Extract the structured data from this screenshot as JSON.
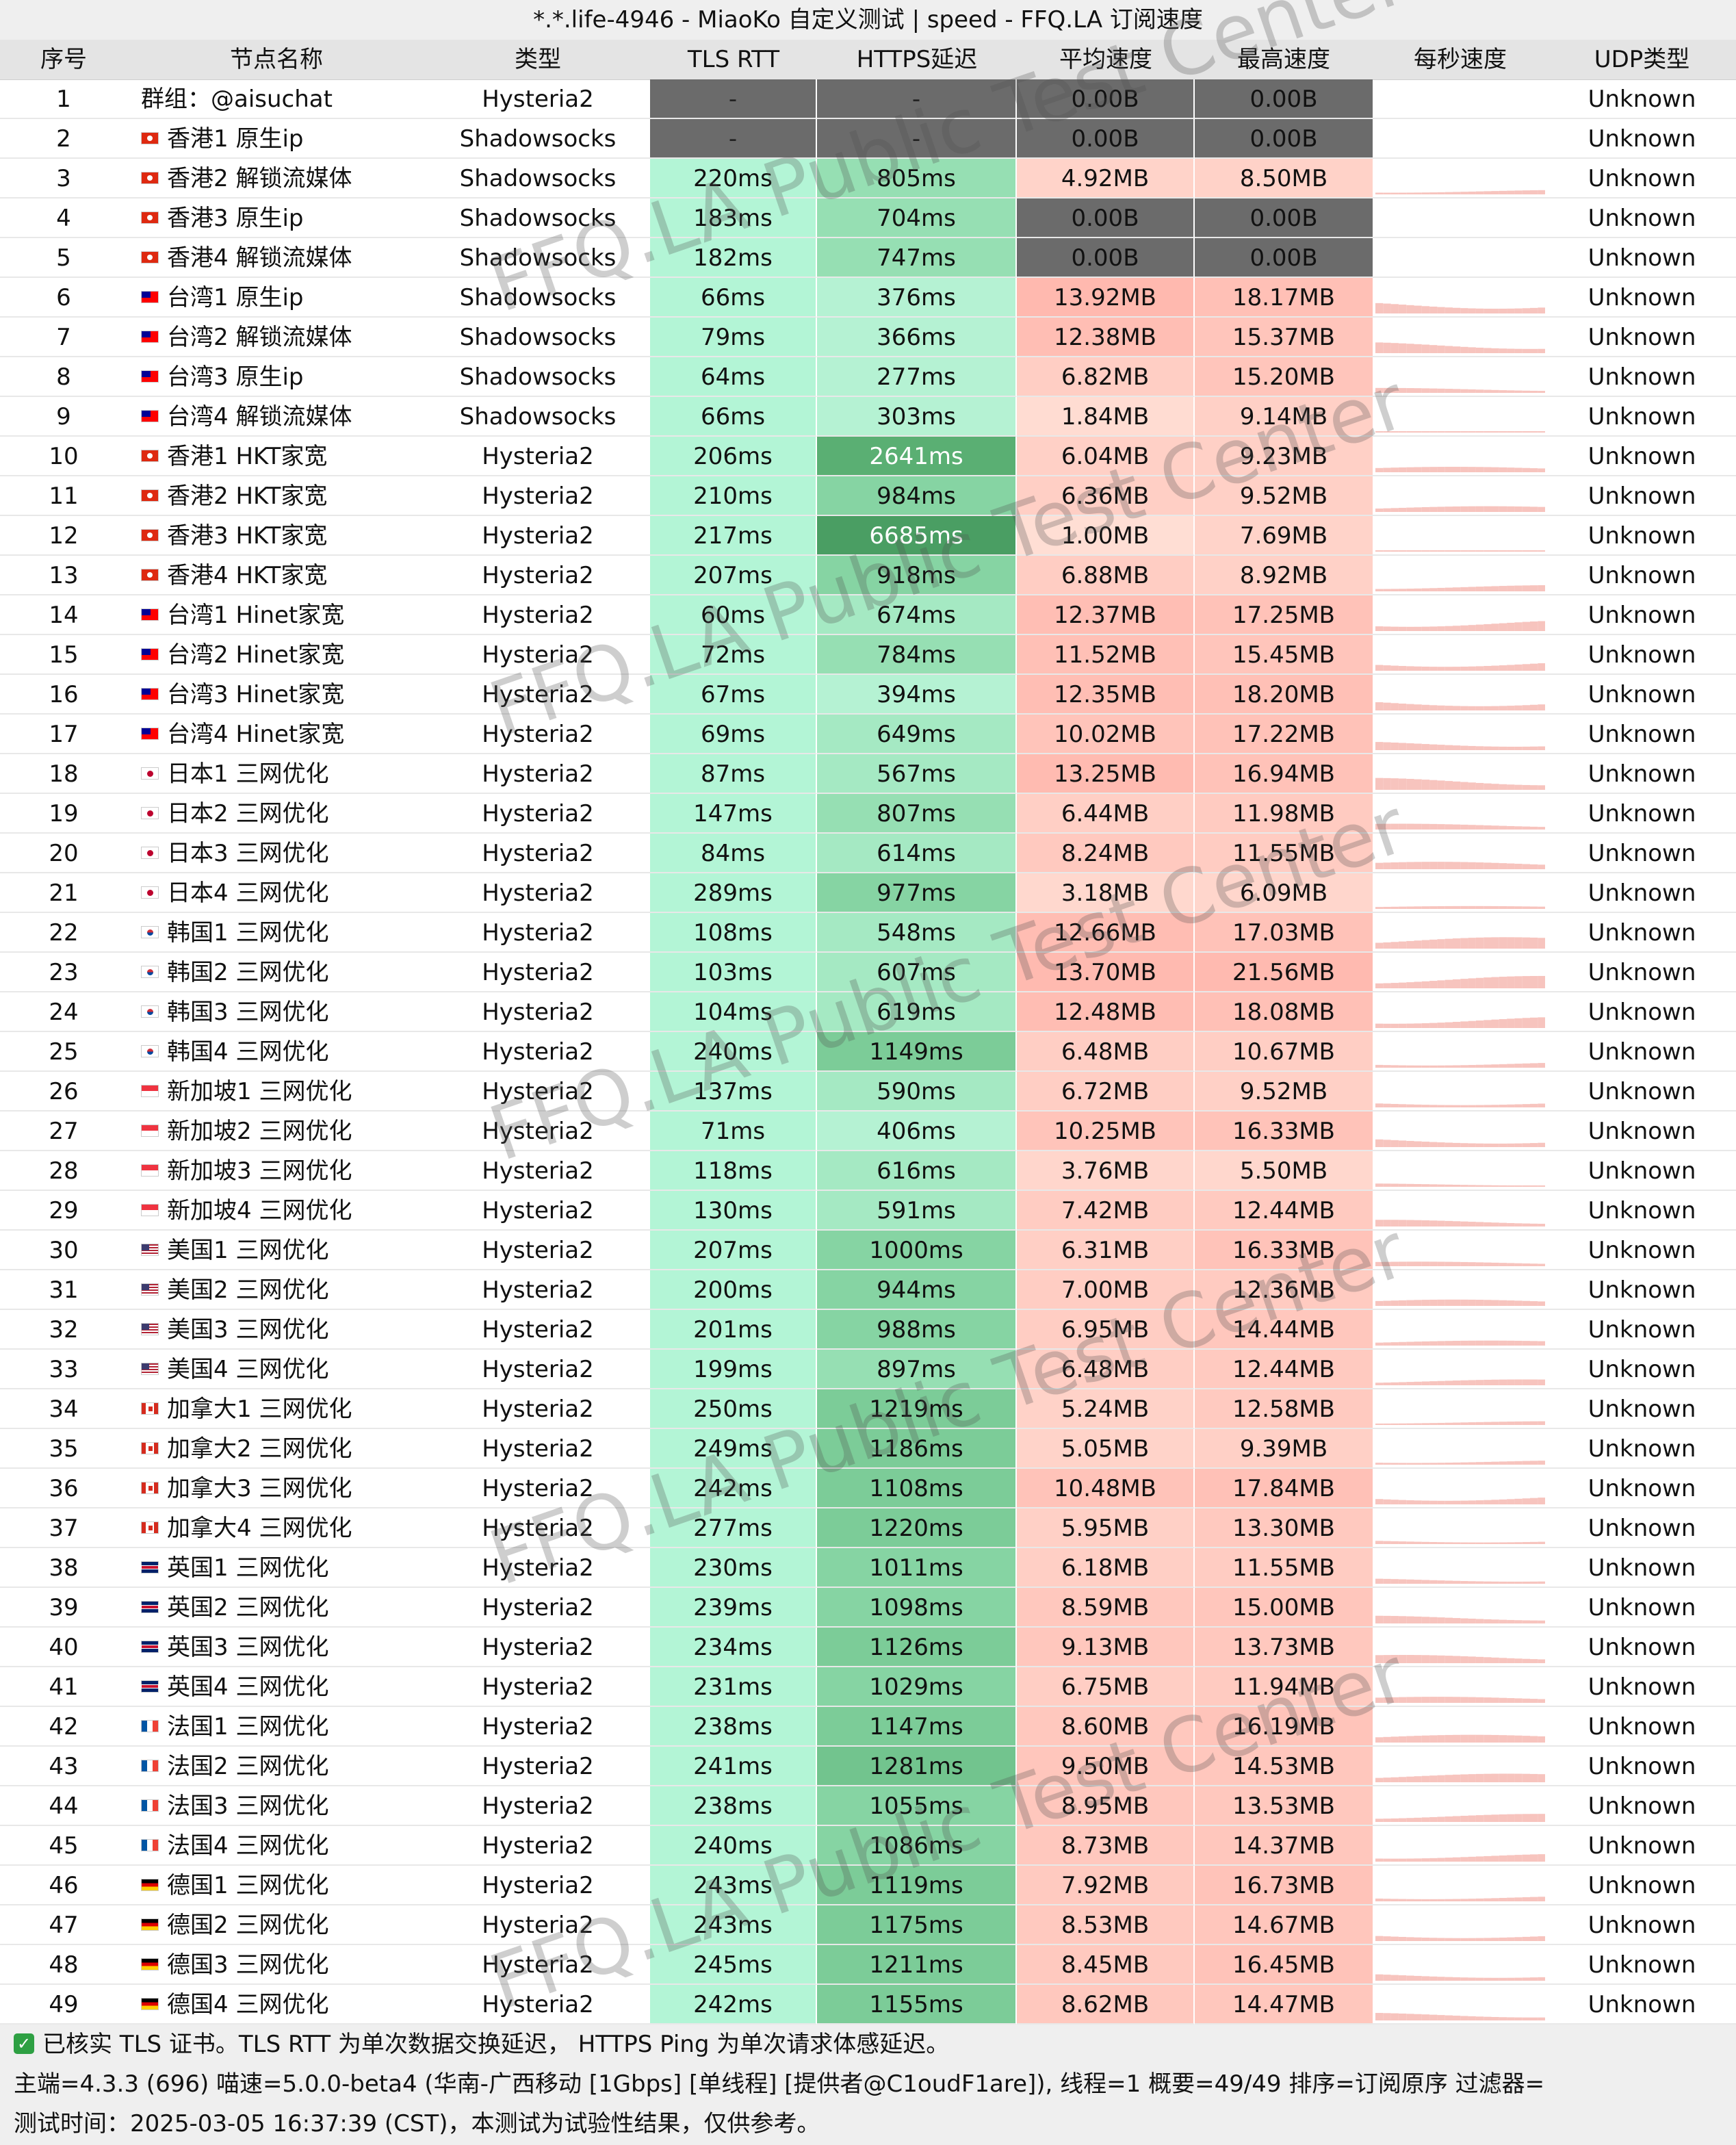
{
  "title": "*.*.life-4946 - MiaoKo 自定义测试 | speed - FFQ.LA 订阅速度",
  "columns": [
    "序号",
    "节点名称",
    "类型",
    "TLS RTT",
    "HTTPS延迟",
    "平均速度",
    "最高速度",
    "每秒速度",
    "UDP类型"
  ],
  "watermark": "FFQ.LA Public Test Center",
  "rows": [
    {
      "id": "1",
      "flag": "",
      "name": "群组：@aisuchat",
      "type": "Hysteria2",
      "tls": "-",
      "https": "-",
      "avg": "0.00B",
      "max": "0.00B",
      "udp": "Unknown"
    },
    {
      "id": "2",
      "flag": "hk",
      "name": "香港1 原生ip",
      "type": "Shadowsocks",
      "tls": "-",
      "https": "-",
      "avg": "0.00B",
      "max": "0.00B",
      "udp": "Unknown"
    },
    {
      "id": "3",
      "flag": "hk",
      "name": "香港2 解锁流媒体",
      "type": "Shadowsocks",
      "tls": "220ms",
      "https": "805ms",
      "avg": "4.92MB",
      "max": "8.50MB",
      "udp": "Unknown"
    },
    {
      "id": "4",
      "flag": "hk",
      "name": "香港3 原生ip",
      "type": "Shadowsocks",
      "tls": "183ms",
      "https": "704ms",
      "avg": "0.00B",
      "max": "0.00B",
      "udp": "Unknown"
    },
    {
      "id": "5",
      "flag": "hk",
      "name": "香港4 解锁流媒体",
      "type": "Shadowsocks",
      "tls": "182ms",
      "https": "747ms",
      "avg": "0.00B",
      "max": "0.00B",
      "udp": "Unknown"
    },
    {
      "id": "6",
      "flag": "tw",
      "name": "台湾1 原生ip",
      "type": "Shadowsocks",
      "tls": "66ms",
      "https": "376ms",
      "avg": "13.92MB",
      "max": "18.17MB",
      "udp": "Unknown"
    },
    {
      "id": "7",
      "flag": "tw",
      "name": "台湾2 解锁流媒体",
      "type": "Shadowsocks",
      "tls": "79ms",
      "https": "366ms",
      "avg": "12.38MB",
      "max": "15.37MB",
      "udp": "Unknown"
    },
    {
      "id": "8",
      "flag": "tw",
      "name": "台湾3 原生ip",
      "type": "Shadowsocks",
      "tls": "64ms",
      "https": "277ms",
      "avg": "6.82MB",
      "max": "15.20MB",
      "udp": "Unknown"
    },
    {
      "id": "9",
      "flag": "tw",
      "name": "台湾4 解锁流媒体",
      "type": "Shadowsocks",
      "tls": "66ms",
      "https": "303ms",
      "avg": "1.84MB",
      "max": "9.14MB",
      "udp": "Unknown"
    },
    {
      "id": "10",
      "flag": "hk",
      "name": "香港1 HKT家宽",
      "type": "Hysteria2",
      "tls": "206ms",
      "https": "2641ms",
      "avg": "6.04MB",
      "max": "9.23MB",
      "udp": "Unknown"
    },
    {
      "id": "11",
      "flag": "hk",
      "name": "香港2 HKT家宽",
      "type": "Hysteria2",
      "tls": "210ms",
      "https": "984ms",
      "avg": "6.36MB",
      "max": "9.52MB",
      "udp": "Unknown"
    },
    {
      "id": "12",
      "flag": "hk",
      "name": "香港3 HKT家宽",
      "type": "Hysteria2",
      "tls": "217ms",
      "https": "6685ms",
      "avg": "1.00MB",
      "max": "7.69MB",
      "udp": "Unknown"
    },
    {
      "id": "13",
      "flag": "hk",
      "name": "香港4 HKT家宽",
      "type": "Hysteria2",
      "tls": "207ms",
      "https": "918ms",
      "avg": "6.88MB",
      "max": "8.92MB",
      "udp": "Unknown"
    },
    {
      "id": "14",
      "flag": "tw",
      "name": "台湾1 Hinet家宽",
      "type": "Hysteria2",
      "tls": "60ms",
      "https": "674ms",
      "avg": "12.37MB",
      "max": "17.25MB",
      "udp": "Unknown"
    },
    {
      "id": "15",
      "flag": "tw",
      "name": "台湾2 Hinet家宽",
      "type": "Hysteria2",
      "tls": "72ms",
      "https": "784ms",
      "avg": "11.52MB",
      "max": "15.45MB",
      "udp": "Unknown"
    },
    {
      "id": "16",
      "flag": "tw",
      "name": "台湾3 Hinet家宽",
      "type": "Hysteria2",
      "tls": "67ms",
      "https": "394ms",
      "avg": "12.35MB",
      "max": "18.20MB",
      "udp": "Unknown"
    },
    {
      "id": "17",
      "flag": "tw",
      "name": "台湾4 Hinet家宽",
      "type": "Hysteria2",
      "tls": "69ms",
      "https": "649ms",
      "avg": "10.02MB",
      "max": "17.22MB",
      "udp": "Unknown"
    },
    {
      "id": "18",
      "flag": "jp",
      "name": "日本1 三网优化",
      "type": "Hysteria2",
      "tls": "87ms",
      "https": "567ms",
      "avg": "13.25MB",
      "max": "16.94MB",
      "udp": "Unknown"
    },
    {
      "id": "19",
      "flag": "jp",
      "name": "日本2 三网优化",
      "type": "Hysteria2",
      "tls": "147ms",
      "https": "807ms",
      "avg": "6.44MB",
      "max": "11.98MB",
      "udp": "Unknown"
    },
    {
      "id": "20",
      "flag": "jp",
      "name": "日本3 三网优化",
      "type": "Hysteria2",
      "tls": "84ms",
      "https": "614ms",
      "avg": "8.24MB",
      "max": "11.55MB",
      "udp": "Unknown"
    },
    {
      "id": "21",
      "flag": "jp",
      "name": "日本4 三网优化",
      "type": "Hysteria2",
      "tls": "289ms",
      "https": "977ms",
      "avg": "3.18MB",
      "max": "6.09MB",
      "udp": "Unknown"
    },
    {
      "id": "22",
      "flag": "kr",
      "name": "韩国1 三网优化",
      "type": "Hysteria2",
      "tls": "108ms",
      "https": "548ms",
      "avg": "12.66MB",
      "max": "17.03MB",
      "udp": "Unknown"
    },
    {
      "id": "23",
      "flag": "kr",
      "name": "韩国2 三网优化",
      "type": "Hysteria2",
      "tls": "103ms",
      "https": "607ms",
      "avg": "13.70MB",
      "max": "21.56MB",
      "udp": "Unknown"
    },
    {
      "id": "24",
      "flag": "kr",
      "name": "韩国3 三网优化",
      "type": "Hysteria2",
      "tls": "104ms",
      "https": "619ms",
      "avg": "12.48MB",
      "max": "18.08MB",
      "udp": "Unknown"
    },
    {
      "id": "25",
      "flag": "kr",
      "name": "韩国4 三网优化",
      "type": "Hysteria2",
      "tls": "240ms",
      "https": "1149ms",
      "avg": "6.48MB",
      "max": "10.67MB",
      "udp": "Unknown"
    },
    {
      "id": "26",
      "flag": "sg",
      "name": "新加坡1 三网优化",
      "type": "Hysteria2",
      "tls": "137ms",
      "https": "590ms",
      "avg": "6.72MB",
      "max": "9.52MB",
      "udp": "Unknown"
    },
    {
      "id": "27",
      "flag": "sg",
      "name": "新加坡2 三网优化",
      "type": "Hysteria2",
      "tls": "71ms",
      "https": "406ms",
      "avg": "10.25MB",
      "max": "16.33MB",
      "udp": "Unknown"
    },
    {
      "id": "28",
      "flag": "sg",
      "name": "新加坡3 三网优化",
      "type": "Hysteria2",
      "tls": "118ms",
      "https": "616ms",
      "avg": "3.76MB",
      "max": "5.50MB",
      "udp": "Unknown"
    },
    {
      "id": "29",
      "flag": "sg",
      "name": "新加坡4 三网优化",
      "type": "Hysteria2",
      "tls": "130ms",
      "https": "591ms",
      "avg": "7.42MB",
      "max": "12.44MB",
      "udp": "Unknown"
    },
    {
      "id": "30",
      "flag": "us",
      "name": "美国1 三网优化",
      "type": "Hysteria2",
      "tls": "207ms",
      "https": "1000ms",
      "avg": "6.31MB",
      "max": "16.33MB",
      "udp": "Unknown"
    },
    {
      "id": "31",
      "flag": "us",
      "name": "美国2 三网优化",
      "type": "Hysteria2",
      "tls": "200ms",
      "https": "944ms",
      "avg": "7.00MB",
      "max": "12.36MB",
      "udp": "Unknown"
    },
    {
      "id": "32",
      "flag": "us",
      "name": "美国3 三网优化",
      "type": "Hysteria2",
      "tls": "201ms",
      "https": "988ms",
      "avg": "6.95MB",
      "max": "14.44MB",
      "udp": "Unknown"
    },
    {
      "id": "33",
      "flag": "us",
      "name": "美国4 三网优化",
      "type": "Hysteria2",
      "tls": "199ms",
      "https": "897ms",
      "avg": "6.48MB",
      "max": "12.44MB",
      "udp": "Unknown"
    },
    {
      "id": "34",
      "flag": "ca",
      "name": "加拿大1 三网优化",
      "type": "Hysteria2",
      "tls": "250ms",
      "https": "1219ms",
      "avg": "5.24MB",
      "max": "12.58MB",
      "udp": "Unknown"
    },
    {
      "id": "35",
      "flag": "ca",
      "name": "加拿大2 三网优化",
      "type": "Hysteria2",
      "tls": "249ms",
      "https": "1186ms",
      "avg": "5.05MB",
      "max": "9.39MB",
      "udp": "Unknown"
    },
    {
      "id": "36",
      "flag": "ca",
      "name": "加拿大3 三网优化",
      "type": "Hysteria2",
      "tls": "242ms",
      "https": "1108ms",
      "avg": "10.48MB",
      "max": "17.84MB",
      "udp": "Unknown"
    },
    {
      "id": "37",
      "flag": "ca",
      "name": "加拿大4 三网优化",
      "type": "Hysteria2",
      "tls": "277ms",
      "https": "1220ms",
      "avg": "5.95MB",
      "max": "13.30MB",
      "udp": "Unknown"
    },
    {
      "id": "38",
      "flag": "gb",
      "name": "英国1 三网优化",
      "type": "Hysteria2",
      "tls": "230ms",
      "https": "1011ms",
      "avg": "6.18MB",
      "max": "11.55MB",
      "udp": "Unknown"
    },
    {
      "id": "39",
      "flag": "gb",
      "name": "英国2 三网优化",
      "type": "Hysteria2",
      "tls": "239ms",
      "https": "1098ms",
      "avg": "8.59MB",
      "max": "15.00MB",
      "udp": "Unknown"
    },
    {
      "id": "40",
      "flag": "gb",
      "name": "英国3 三网优化",
      "type": "Hysteria2",
      "tls": "234ms",
      "https": "1126ms",
      "avg": "9.13MB",
      "max": "13.73MB",
      "udp": "Unknown"
    },
    {
      "id": "41",
      "flag": "gb",
      "name": "英国4 三网优化",
      "type": "Hysteria2",
      "tls": "231ms",
      "https": "1029ms",
      "avg": "6.75MB",
      "max": "11.94MB",
      "udp": "Unknown"
    },
    {
      "id": "42",
      "flag": "fr",
      "name": "法国1 三网优化",
      "type": "Hysteria2",
      "tls": "238ms",
      "https": "1147ms",
      "avg": "8.60MB",
      "max": "16.19MB",
      "udp": "Unknown"
    },
    {
      "id": "43",
      "flag": "fr",
      "name": "法国2 三网优化",
      "type": "Hysteria2",
      "tls": "241ms",
      "https": "1281ms",
      "avg": "9.50MB",
      "max": "14.53MB",
      "udp": "Unknown"
    },
    {
      "id": "44",
      "flag": "fr",
      "name": "法国3 三网优化",
      "type": "Hysteria2",
      "tls": "238ms",
      "https": "1055ms",
      "avg": "8.95MB",
      "max": "13.53MB",
      "udp": "Unknown"
    },
    {
      "id": "45",
      "flag": "fr",
      "name": "法国4 三网优化",
      "type": "Hysteria2",
      "tls": "240ms",
      "https": "1086ms",
      "avg": "8.73MB",
      "max": "14.37MB",
      "udp": "Unknown"
    },
    {
      "id": "46",
      "flag": "de",
      "name": "德国1 三网优化",
      "type": "Hysteria2",
      "tls": "243ms",
      "https": "1119ms",
      "avg": "7.92MB",
      "max": "16.73MB",
      "udp": "Unknown"
    },
    {
      "id": "47",
      "flag": "de",
      "name": "德国2 三网优化",
      "type": "Hysteria2",
      "tls": "243ms",
      "https": "1175ms",
      "avg": "8.53MB",
      "max": "14.67MB",
      "udp": "Unknown"
    },
    {
      "id": "48",
      "flag": "de",
      "name": "德国3 三网优化",
      "type": "Hysteria2",
      "tls": "245ms",
      "https": "1211ms",
      "avg": "8.45MB",
      "max": "16.45MB",
      "udp": "Unknown"
    },
    {
      "id": "49",
      "flag": "de",
      "name": "德国4 三网优化",
      "type": "Hysteria2",
      "tls": "242ms",
      "https": "1155ms",
      "avg": "8.62MB",
      "max": "14.47MB",
      "udp": "Unknown"
    }
  ],
  "footer": {
    "line1": "已核实 TLS 证书。TLS RTT 为单次数据交换延迟， HTTPS Ping 为单次请求体感延迟。",
    "line2": "主端=4.3.3 (696) 喵速=5.0.0-beta4 (华南-广西移动 [1Gbps] [单线程] [提供者@C1oudF1are]), 线程=1 概要=49/49 排序=订阅原序 过滤器=",
    "line3": "测试时间：2025-03-05 16:37:39 (CST)，本测试为试验性结果，仅供参考。"
  },
  "colors": {
    "tls_green": "#b3f5d6",
    "dead_cell": "#6b6b6b",
    "speed_pink": "#ffd2cc",
    "spark_pink": "#f7c4be"
  }
}
